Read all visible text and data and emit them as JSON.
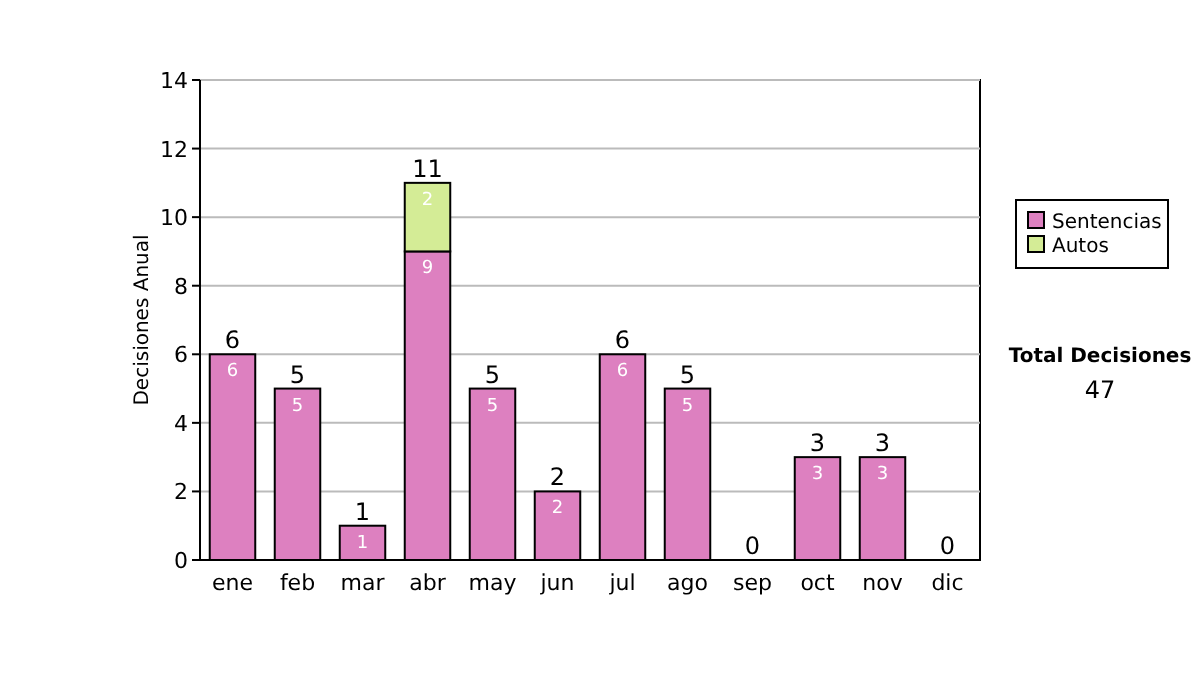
{
  "chart_data": {
    "type": "bar",
    "stacked": true,
    "ylabel": "Decisiones Anual",
    "categories": [
      "ene",
      "feb",
      "mar",
      "abr",
      "may",
      "jun",
      "jul",
      "ago",
      "sep",
      "oct",
      "nov",
      "dic"
    ],
    "series": [
      {
        "name": "Sentencias",
        "color": "#dd80c0",
        "values": [
          6,
          5,
          1,
          9,
          5,
          2,
          6,
          5,
          0,
          3,
          3,
          0
        ],
        "value_labels": [
          "6",
          "5",
          "1",
          "9",
          "5",
          "2",
          "6",
          "5",
          null,
          "3",
          "3",
          null
        ]
      },
      {
        "name": "Autos",
        "color": "#d4ec96",
        "values": [
          0,
          0,
          0,
          2,
          0,
          0,
          0,
          0,
          0,
          0,
          0,
          0
        ],
        "value_labels": [
          null,
          null,
          null,
          "2",
          null,
          null,
          null,
          null,
          null,
          null,
          null,
          null
        ]
      }
    ],
    "totals": [
      "6",
      "5",
      "1",
      "11",
      "5",
      "2",
      "6",
      "5",
      "0",
      "3",
      "3",
      "0"
    ],
    "ylim": [
      0,
      14
    ],
    "yticks": [
      0,
      2,
      4,
      6,
      8,
      10,
      12,
      14
    ],
    "grid": "y",
    "legend": "right",
    "annotations": [
      "Total Decisiones",
      "47"
    ]
  }
}
